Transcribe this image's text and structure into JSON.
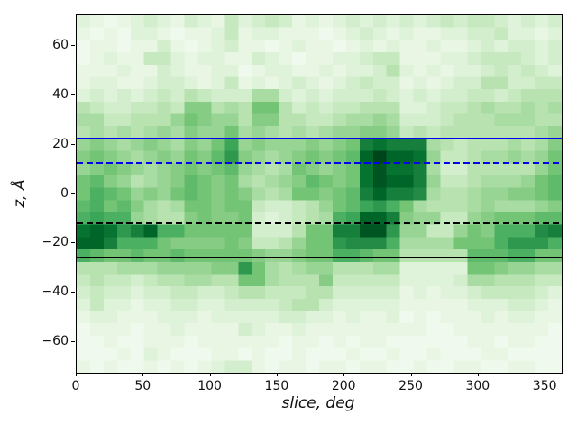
{
  "figure": {
    "background": "#ffffff",
    "spine_color": "#000000",
    "tick_color": "#000000",
    "tick_label_color": "#111111"
  },
  "chart_data": {
    "type": "heatmap",
    "title": "",
    "xlabel": "slice, deg",
    "ylabel": "z, Å",
    "xlim": [
      0,
      362
    ],
    "ylim": [
      -72.5,
      72.5
    ],
    "x_ticks": [
      0,
      50,
      100,
      150,
      200,
      250,
      300,
      350
    ],
    "y_ticks": [
      60,
      40,
      20,
      0,
      -20,
      -40,
      -60
    ],
    "grid": false,
    "legend": "none",
    "x_bins": 36,
    "z_bins": 29,
    "x_bin_width_deg": 10,
    "z_bin_width_angstrom": 5,
    "colormap": {
      "name": "Greens",
      "anchors": [
        [
          247,
          252,
          245
        ],
        [
          229,
          245,
          224
        ],
        [
          199,
          233,
          192
        ],
        [
          161,
          217,
          155
        ],
        [
          116,
          196,
          118
        ],
        [
          65,
          171,
          93
        ],
        [
          35,
          139,
          69
        ],
        [
          0,
          109,
          44
        ],
        [
          0,
          68,
          27
        ]
      ]
    },
    "values_rows_top_to_bottom": [
      [
        0.15,
        0.1,
        0.05,
        0.1,
        0.15,
        0.2,
        0.15,
        0.1,
        0.2,
        0.15,
        0.1,
        0.25,
        0.15,
        0.2,
        0.25,
        0.2,
        0.1,
        0.15,
        0.1,
        0.15,
        0.2,
        0.15,
        0.2,
        0.15,
        0.2,
        0.15,
        0.2,
        0.25,
        0.2,
        0.25,
        0.25,
        0.2,
        0.15,
        0.2,
        0.15,
        0.2
      ],
      [
        0.1,
        0.05,
        0.1,
        0.05,
        0.15,
        0.15,
        0.1,
        0.05,
        0.1,
        0.1,
        0.15,
        0.25,
        0.1,
        0.15,
        0.15,
        0.1,
        0.1,
        0.1,
        0.05,
        0.1,
        0.15,
        0.2,
        0.15,
        0.1,
        0.15,
        0.1,
        0.1,
        0.15,
        0.15,
        0.2,
        0.2,
        0.25,
        0.15,
        0.15,
        0.1,
        0.15
      ],
      [
        0.05,
        0.1,
        0.1,
        0.05,
        0.1,
        0.1,
        0.2,
        0.1,
        0.05,
        0.1,
        0.15,
        0.2,
        0.1,
        0.1,
        0.05,
        0.1,
        0.15,
        0.1,
        0.1,
        0.05,
        0.1,
        0.15,
        0.1,
        0.15,
        0.1,
        0.1,
        0.15,
        0.1,
        0.1,
        0.15,
        0.2,
        0.15,
        0.2,
        0.2,
        0.15,
        0.2
      ],
      [
        0.05,
        0.1,
        0.15,
        0.1,
        0.1,
        0.25,
        0.25,
        0.15,
        0.1,
        0.15,
        0.15,
        0.1,
        0.1,
        0.2,
        0.15,
        0.1,
        0.05,
        0.1,
        0.1,
        0.15,
        0.15,
        0.2,
        0.25,
        0.25,
        0.1,
        0.1,
        0.1,
        0.15,
        0.15,
        0.2,
        0.25,
        0.25,
        0.25,
        0.2,
        0.15,
        0.2
      ],
      [
        0.1,
        0.1,
        0.1,
        0.15,
        0.1,
        0.1,
        0.2,
        0.15,
        0.1,
        0.1,
        0.15,
        0.15,
        0.05,
        0.1,
        0.15,
        0.15,
        0.1,
        0.1,
        0.15,
        0.1,
        0.15,
        0.15,
        0.2,
        0.3,
        0.15,
        0.1,
        0.15,
        0.1,
        0.15,
        0.15,
        0.2,
        0.25,
        0.2,
        0.25,
        0.2,
        0.15
      ],
      [
        0.1,
        0.15,
        0.15,
        0.1,
        0.1,
        0.15,
        0.2,
        0.2,
        0.15,
        0.1,
        0.15,
        0.25,
        0.1,
        0.15,
        0.1,
        0.15,
        0.2,
        0.15,
        0.1,
        0.15,
        0.2,
        0.25,
        0.2,
        0.2,
        0.1,
        0.15,
        0.1,
        0.15,
        0.2,
        0.2,
        0.3,
        0.3,
        0.2,
        0.2,
        0.25,
        0.25
      ],
      [
        0.15,
        0.2,
        0.15,
        0.2,
        0.15,
        0.2,
        0.25,
        0.2,
        0.3,
        0.25,
        0.2,
        0.2,
        0.2,
        0.35,
        0.35,
        0.2,
        0.15,
        0.2,
        0.15,
        0.2,
        0.2,
        0.2,
        0.25,
        0.2,
        0.15,
        0.2,
        0.15,
        0.2,
        0.2,
        0.25,
        0.25,
        0.2,
        0.25,
        0.3,
        0.3,
        0.3
      ],
      [
        0.3,
        0.25,
        0.2,
        0.2,
        0.25,
        0.25,
        0.3,
        0.25,
        0.45,
        0.45,
        0.3,
        0.35,
        0.3,
        0.5,
        0.5,
        0.3,
        0.2,
        0.25,
        0.2,
        0.25,
        0.25,
        0.3,
        0.3,
        0.3,
        0.15,
        0.15,
        0.2,
        0.25,
        0.25,
        0.3,
        0.35,
        0.3,
        0.3,
        0.35,
        0.3,
        0.35
      ],
      [
        0.35,
        0.35,
        0.25,
        0.25,
        0.3,
        0.3,
        0.3,
        0.4,
        0.5,
        0.45,
        0.4,
        0.4,
        0.3,
        0.45,
        0.45,
        0.3,
        0.3,
        0.25,
        0.25,
        0.3,
        0.35,
        0.35,
        0.4,
        0.35,
        0.2,
        0.2,
        0.2,
        0.25,
        0.3,
        0.3,
        0.3,
        0.35,
        0.35,
        0.35,
        0.3,
        0.3
      ],
      [
        0.3,
        0.35,
        0.3,
        0.35,
        0.3,
        0.35,
        0.4,
        0.35,
        0.45,
        0.4,
        0.4,
        0.5,
        0.35,
        0.4,
        0.35,
        0.3,
        0.35,
        0.3,
        0.35,
        0.4,
        0.4,
        0.45,
        0.45,
        0.4,
        0.25,
        0.3,
        0.25,
        0.3,
        0.3,
        0.3,
        0.3,
        0.3,
        0.3,
        0.3,
        0.35,
        0.4
      ],
      [
        0.4,
        0.45,
        0.4,
        0.35,
        0.4,
        0.45,
        0.4,
        0.35,
        0.45,
        0.4,
        0.5,
        0.65,
        0.4,
        0.45,
        0.4,
        0.4,
        0.4,
        0.45,
        0.4,
        0.45,
        0.5,
        0.8,
        0.85,
        0.8,
        0.8,
        0.8,
        0.35,
        0.3,
        0.25,
        0.3,
        0.3,
        0.3,
        0.35,
        0.3,
        0.35,
        0.45
      ],
      [
        0.45,
        0.5,
        0.45,
        0.4,
        0.35,
        0.4,
        0.45,
        0.4,
        0.5,
        0.45,
        0.55,
        0.7,
        0.45,
        0.4,
        0.35,
        0.4,
        0.45,
        0.5,
        0.45,
        0.5,
        0.55,
        0.9,
        1.0,
        0.9,
        0.9,
        0.85,
        0.4,
        0.25,
        0.25,
        0.3,
        0.35,
        0.35,
        0.4,
        0.35,
        0.4,
        0.5
      ],
      [
        0.4,
        0.45,
        0.5,
        0.45,
        0.4,
        0.35,
        0.4,
        0.45,
        0.5,
        0.45,
        0.5,
        0.55,
        0.4,
        0.35,
        0.3,
        0.35,
        0.5,
        0.45,
        0.4,
        0.45,
        0.5,
        0.85,
        0.95,
        0.85,
        0.85,
        0.8,
        0.35,
        0.2,
        0.2,
        0.3,
        0.3,
        0.3,
        0.3,
        0.3,
        0.4,
        0.5
      ],
      [
        0.5,
        0.55,
        0.45,
        0.4,
        0.3,
        0.35,
        0.4,
        0.45,
        0.55,
        0.5,
        0.45,
        0.5,
        0.35,
        0.3,
        0.35,
        0.4,
        0.45,
        0.55,
        0.5,
        0.45,
        0.5,
        0.85,
        0.95,
        0.9,
        0.9,
        0.8,
        0.4,
        0.25,
        0.25,
        0.3,
        0.35,
        0.35,
        0.35,
        0.4,
        0.5,
        0.55
      ],
      [
        0.5,
        0.6,
        0.55,
        0.5,
        0.4,
        0.45,
        0.4,
        0.5,
        0.55,
        0.5,
        0.45,
        0.5,
        0.45,
        0.35,
        0.3,
        0.35,
        0.5,
        0.5,
        0.45,
        0.5,
        0.55,
        0.8,
        0.9,
        0.8,
        0.8,
        0.75,
        0.35,
        0.3,
        0.3,
        0.35,
        0.4,
        0.4,
        0.45,
        0.45,
        0.5,
        0.55
      ],
      [
        0.55,
        0.6,
        0.5,
        0.55,
        0.45,
        0.35,
        0.3,
        0.35,
        0.5,
        0.5,
        0.45,
        0.5,
        0.5,
        0.25,
        0.2,
        0.2,
        0.25,
        0.3,
        0.4,
        0.5,
        0.55,
        0.65,
        0.7,
        0.6,
        0.5,
        0.35,
        0.3,
        0.3,
        0.3,
        0.35,
        0.4,
        0.35,
        0.35,
        0.35,
        0.4,
        0.45
      ],
      [
        0.6,
        0.65,
        0.6,
        0.6,
        0.4,
        0.35,
        0.3,
        0.3,
        0.45,
        0.5,
        0.45,
        0.45,
        0.5,
        0.2,
        0.15,
        0.2,
        0.25,
        0.3,
        0.35,
        0.6,
        0.65,
        0.9,
        0.9,
        0.8,
        0.45,
        0.4,
        0.4,
        0.25,
        0.25,
        0.4,
        0.45,
        0.5,
        0.5,
        0.5,
        0.55,
        0.55
      ],
      [
        0.85,
        0.9,
        0.85,
        0.7,
        0.8,
        0.9,
        0.6,
        0.6,
        0.5,
        0.5,
        0.5,
        0.5,
        0.5,
        0.2,
        0.2,
        0.2,
        0.3,
        0.5,
        0.5,
        0.8,
        0.8,
        0.95,
        0.95,
        0.7,
        0.4,
        0.4,
        0.25,
        0.25,
        0.4,
        0.5,
        0.45,
        0.6,
        0.6,
        0.6,
        0.75,
        0.8
      ],
      [
        0.9,
        0.9,
        0.8,
        0.6,
        0.6,
        0.6,
        0.5,
        0.45,
        0.45,
        0.45,
        0.45,
        0.5,
        0.45,
        0.25,
        0.25,
        0.3,
        0.4,
        0.5,
        0.5,
        0.7,
        0.75,
        0.75,
        0.75,
        0.6,
        0.35,
        0.35,
        0.35,
        0.35,
        0.5,
        0.5,
        0.5,
        0.6,
        0.7,
        0.7,
        0.7,
        0.6
      ],
      [
        0.6,
        0.55,
        0.5,
        0.5,
        0.55,
        0.5,
        0.5,
        0.55,
        0.5,
        0.5,
        0.5,
        0.5,
        0.5,
        0.45,
        0.4,
        0.4,
        0.45,
        0.5,
        0.5,
        0.6,
        0.6,
        0.55,
        0.5,
        0.5,
        0.3,
        0.3,
        0.3,
        0.3,
        0.3,
        0.55,
        0.55,
        0.55,
        0.6,
        0.6,
        0.5,
        0.5
      ],
      [
        0.3,
        0.3,
        0.3,
        0.35,
        0.35,
        0.35,
        0.4,
        0.4,
        0.4,
        0.4,
        0.45,
        0.45,
        0.7,
        0.5,
        0.35,
        0.3,
        0.35,
        0.4,
        0.4,
        0.3,
        0.3,
        0.3,
        0.35,
        0.35,
        0.15,
        0.15,
        0.15,
        0.15,
        0.15,
        0.5,
        0.5,
        0.45,
        0.4,
        0.4,
        0.35,
        0.35
      ],
      [
        0.25,
        0.3,
        0.25,
        0.25,
        0.2,
        0.25,
        0.3,
        0.3,
        0.35,
        0.35,
        0.3,
        0.3,
        0.5,
        0.5,
        0.35,
        0.3,
        0.3,
        0.3,
        0.45,
        0.25,
        0.25,
        0.25,
        0.25,
        0.25,
        0.15,
        0.15,
        0.15,
        0.15,
        0.2,
        0.35,
        0.35,
        0.3,
        0.3,
        0.3,
        0.25,
        0.25
      ],
      [
        0.2,
        0.25,
        0.2,
        0.2,
        0.15,
        0.2,
        0.2,
        0.25,
        0.25,
        0.2,
        0.2,
        0.25,
        0.3,
        0.3,
        0.25,
        0.25,
        0.25,
        0.3,
        0.3,
        0.2,
        0.2,
        0.2,
        0.2,
        0.2,
        0.1,
        0.15,
        0.1,
        0.15,
        0.15,
        0.2,
        0.25,
        0.25,
        0.25,
        0.25,
        0.2,
        0.15
      ],
      [
        0.15,
        0.25,
        0.15,
        0.15,
        0.1,
        0.15,
        0.15,
        0.2,
        0.2,
        0.15,
        0.15,
        0.2,
        0.2,
        0.2,
        0.2,
        0.25,
        0.3,
        0.3,
        0.2,
        0.15,
        0.15,
        0.15,
        0.15,
        0.15,
        0.1,
        0.1,
        0.1,
        0.1,
        0.1,
        0.15,
        0.15,
        0.15,
        0.2,
        0.2,
        0.15,
        0.1
      ],
      [
        0.1,
        0.15,
        0.15,
        0.1,
        0.1,
        0.1,
        0.15,
        0.15,
        0.15,
        0.1,
        0.15,
        0.15,
        0.15,
        0.15,
        0.15,
        0.2,
        0.2,
        0.15,
        0.15,
        0.1,
        0.15,
        0.1,
        0.1,
        0.15,
        0.05,
        0.1,
        0.05,
        0.1,
        0.1,
        0.1,
        0.15,
        0.1,
        0.15,
        0.15,
        0.1,
        0.1
      ],
      [
        0.05,
        0.1,
        0.1,
        0.1,
        0.05,
        0.1,
        0.1,
        0.15,
        0.1,
        0.1,
        0.1,
        0.1,
        0.2,
        0.15,
        0.1,
        0.1,
        0.15,
        0.1,
        0.1,
        0.1,
        0.1,
        0.1,
        0.1,
        0.1,
        0.1,
        0.1,
        0.05,
        0.05,
        0.1,
        0.1,
        0.1,
        0.1,
        0.1,
        0.1,
        0.1,
        0.05
      ],
      [
        0.05,
        0.05,
        0.1,
        0.05,
        0.05,
        0.1,
        0.1,
        0.1,
        0.05,
        0.1,
        0.1,
        0.1,
        0.1,
        0.1,
        0.1,
        0.05,
        0.1,
        0.1,
        0.05,
        0.1,
        0.05,
        0.1,
        0.1,
        0.05,
        0.05,
        0.05,
        0.05,
        0.05,
        0.05,
        0.1,
        0.1,
        0.05,
        0.1,
        0.1,
        0.05,
        0.05
      ],
      [
        0.05,
        0.05,
        0.05,
        0.1,
        0.05,
        0.15,
        0.1,
        0.05,
        0.05,
        0.05,
        0.1,
        0.1,
        0.05,
        0.1,
        0.05,
        0.05,
        0.1,
        0.05,
        0.05,
        0.05,
        0.1,
        0.05,
        0.05,
        0.1,
        0.05,
        0.05,
        0.1,
        0.05,
        0.05,
        0.05,
        0.1,
        0.1,
        0.05,
        0.05,
        0.05,
        0.05
      ],
      [
        0.1,
        0.05,
        0.1,
        0.05,
        0.05,
        0.1,
        0.05,
        0.1,
        0.05,
        0.1,
        0.15,
        0.2,
        0.2,
        0.1,
        0.05,
        0.1,
        0.1,
        0.05,
        0.1,
        0.1,
        0.05,
        0.1,
        0.1,
        0.05,
        0.05,
        0.1,
        0.05,
        0.05,
        0.1,
        0.1,
        0.05,
        0.05,
        0.1,
        0.1,
        0.05,
        0.05
      ]
    ],
    "overlay_lines": [
      {
        "name": "blue-solid-line",
        "z": 22.4,
        "color": "#0000ee",
        "style": "solid",
        "width": 2.0
      },
      {
        "name": "blue-dashed-line",
        "z": 12.7,
        "color": "#0000ee",
        "style": "dashed",
        "width": 2.2
      },
      {
        "name": "black-dashed-line",
        "z": -12.0,
        "color": "#000000",
        "style": "dashed",
        "width": 1.8
      },
      {
        "name": "black-solid-line",
        "z": -25.9,
        "color": "#000000",
        "style": "solid",
        "width": 1.6
      }
    ]
  }
}
